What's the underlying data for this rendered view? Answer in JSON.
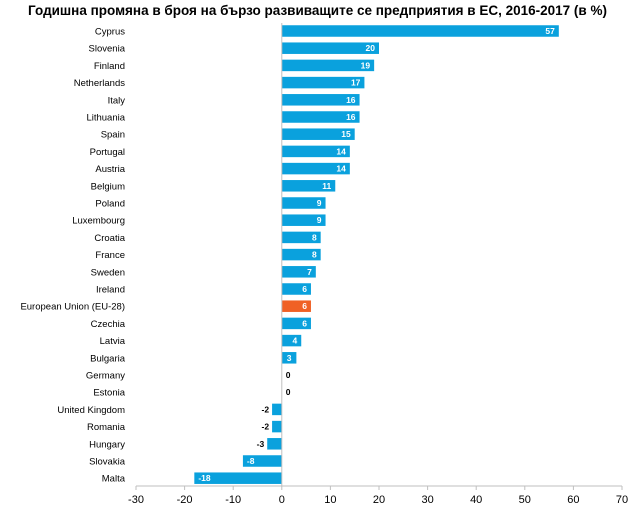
{
  "chart_data": {
    "type": "bar",
    "orientation": "horizontal",
    "title": "Годишна промяна в броя на бързо развиващите се предприятия в ЕС, 2016-2017 (в %)",
    "categories": [
      "Cyprus",
      "Slovenia",
      "Finland",
      "Netherlands",
      "Italy",
      "Lithuania",
      "Spain",
      "Portugal",
      "Austria",
      "Belgium",
      "Poland",
      "Luxembourg",
      "Croatia",
      "France",
      "Sweden",
      "Ireland",
      "European Union (EU-28)",
      "Czechia",
      "Latvia",
      "Bulgaria",
      "Germany",
      "Estonia",
      "United Kingdom",
      "Romania",
      "Hungary",
      "Slovakia",
      "Malta"
    ],
    "values": [
      57,
      20,
      19,
      17,
      16,
      16,
      15,
      14,
      14,
      11,
      9,
      9,
      8,
      8,
      7,
      6,
      6,
      6,
      4,
      3,
      0,
      0,
      -2,
      -2,
      -3,
      -8,
      -18
    ],
    "data_labels": [
      "57",
      "20",
      "19",
      "17",
      "16",
      "16",
      "15",
      "14",
      "14",
      "11",
      "9",
      "9",
      "8",
      "8",
      "7",
      "6",
      "6",
      "6",
      "4",
      "3",
      "0",
      "0",
      "-2",
      "-2",
      "-3",
      "-8",
      "-18"
    ],
    "xlim": [
      -30,
      70
    ],
    "x_ticks": [
      "-30",
      "-20",
      "-10",
      "0",
      "10",
      "20",
      "30",
      "40",
      "50",
      "60",
      "70"
    ],
    "xlabel": "",
    "ylabel": "",
    "grid": false,
    "legend": "none",
    "highlight_category": "European Union (EU-28)",
    "colors": {
      "bar": "#0aa1dd",
      "highlight": "#f06125",
      "axis": "#bfbfbf"
    }
  }
}
